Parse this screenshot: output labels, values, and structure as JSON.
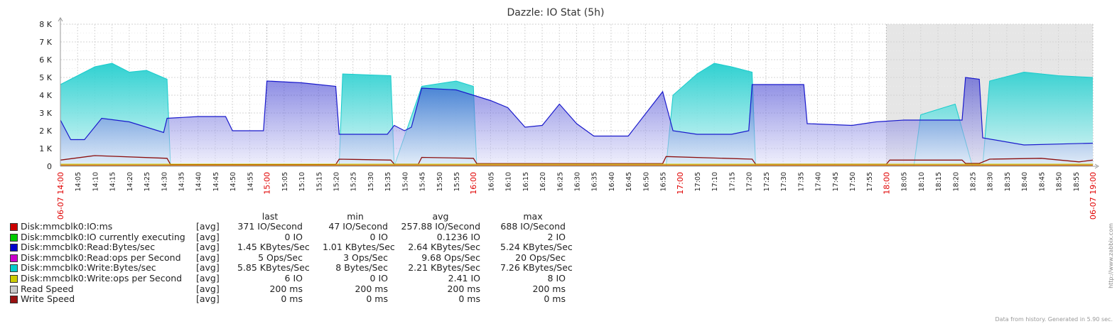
{
  "chart_data": {
    "type": "area",
    "title": "Dazzle: IO Stat (5h)",
    "y_ticks": [
      "0",
      "1 K",
      "2 K",
      "3 K",
      "4 K",
      "5 K",
      "6 K",
      "7 K",
      "8 K"
    ],
    "ylim": [
      0,
      8000
    ],
    "x_range": [
      "14:00",
      "19:00"
    ],
    "x_major_labels": [
      {
        "time": "14:00",
        "label": "06-07 14:00"
      },
      {
        "time": "15:00",
        "label": "15:00"
      },
      {
        "time": "16:00",
        "label": "16:00"
      },
      {
        "time": "17:00",
        "label": "17:00"
      },
      {
        "time": "18:00",
        "label": "18:00"
      },
      {
        "time": "19:00",
        "label": "06-07 19:00"
      }
    ],
    "x_minor_labels": [
      "14:05",
      "14:10",
      "14:15",
      "14:20",
      "14:25",
      "14:30",
      "14:35",
      "14:40",
      "14:45",
      "14:50",
      "14:55",
      "15:05",
      "15:10",
      "15:15",
      "15:20",
      "15:25",
      "15:30",
      "15:35",
      "15:40",
      "15:45",
      "15:50",
      "15:55",
      "16:05",
      "16:10",
      "16:15",
      "16:20",
      "16:25",
      "16:30",
      "16:35",
      "16:40",
      "16:45",
      "16:50",
      "16:55",
      "17:05",
      "17:10",
      "17:15",
      "17:20",
      "17:25",
      "17:30",
      "17:35",
      "17:40",
      "17:45",
      "17:50",
      "17:55",
      "18:05",
      "18:10",
      "18:15",
      "18:20",
      "18:25",
      "18:30",
      "18:35",
      "18:40",
      "18:45",
      "18:50",
      "18:55"
    ],
    "shaded_region": [
      "18:00",
      "19:00"
    ],
    "grid": true,
    "series_curves": {
      "write_bytes": {
        "color": "#19cccc",
        "times": [
          "14:00",
          "14:05",
          "14:10",
          "14:15",
          "14:20",
          "14:25",
          "14:31",
          "14:32",
          "15:21",
          "15:22",
          "15:36",
          "15:37",
          "15:45",
          "15:55",
          "16:00",
          "16:01",
          "16:56",
          "16:58",
          "17:05",
          "17:10",
          "17:15",
          "17:21",
          "17:22",
          "18:08",
          "18:10",
          "18:15",
          "18:20",
          "18:25",
          "18:28",
          "18:30",
          "18:40",
          "18:50",
          "19:00"
        ],
        "values": [
          4600,
          5100,
          5600,
          5800,
          5300,
          5400,
          4900,
          0,
          0,
          5200,
          5100,
          0,
          4500,
          4800,
          4500,
          0,
          0,
          4000,
          5200,
          5800,
          5600,
          5300,
          0,
          0,
          2900,
          3200,
          3500,
          0,
          0,
          4800,
          5300,
          5100,
          5000
        ]
      },
      "read_bytes": {
        "color": "#1a1acc",
        "times": [
          "14:00",
          "14:03",
          "14:07",
          "14:12",
          "14:20",
          "14:30",
          "14:31",
          "14:40",
          "14:48",
          "14:50",
          "14:59",
          "15:00",
          "15:10",
          "15:20",
          "15:21",
          "15:25",
          "15:35",
          "15:37",
          "15:40",
          "15:42",
          "15:45",
          "15:55",
          "16:00",
          "16:05",
          "16:10",
          "16:15",
          "16:20",
          "16:25",
          "16:30",
          "16:35",
          "16:40",
          "16:45",
          "16:55",
          "16:58",
          "17:05",
          "17:15",
          "17:20",
          "17:21",
          "17:30",
          "17:36",
          "17:37",
          "17:50",
          "17:57",
          "18:05",
          "18:15",
          "18:22",
          "18:23",
          "18:27",
          "18:28",
          "18:40",
          "19:00"
        ],
        "values": [
          2600,
          1500,
          1500,
          2700,
          2500,
          1900,
          2700,
          2800,
          2800,
          2000,
          2000,
          4800,
          4700,
          4500,
          1800,
          1800,
          1800,
          2300,
          2000,
          2200,
          4400,
          4300,
          4000,
          3700,
          3300,
          2200,
          2300,
          3500,
          2400,
          1700,
          1700,
          1700,
          4200,
          2000,
          1800,
          1800,
          2000,
          4600,
          4600,
          4600,
          2400,
          2300,
          2500,
          2600,
          2600,
          2600,
          5000,
          4900,
          1600,
          1200,
          1300
        ]
      },
      "io_ms": {
        "color": "#8b1010",
        "times": [
          "14:00",
          "14:10",
          "14:31",
          "14:32",
          "15:20",
          "15:21",
          "15:36",
          "15:37",
          "15:44",
          "15:45",
          "16:00",
          "16:01",
          "16:55",
          "16:56",
          "17:21",
          "17:22",
          "18:00",
          "18:01",
          "18:22",
          "18:23",
          "18:27",
          "18:30",
          "18:45",
          "18:56",
          "19:00"
        ],
        "values": [
          350,
          600,
          450,
          100,
          100,
          400,
          350,
          120,
          120,
          500,
          450,
          150,
          150,
          550,
          400,
          120,
          120,
          350,
          350,
          160,
          160,
          400,
          450,
          250,
          350
        ]
      }
    },
    "series": [
      {
        "name": "Disk:mmcblk0:IO:ms",
        "color": "#cc0000",
        "func": "[avg]",
        "last": "371 IO/Second",
        "min": "47 IO/Second",
        "avg": "257.88 IO/Second",
        "max": "688 IO/Second"
      },
      {
        "name": "Disk:mmcblk0:IO currently executing",
        "color": "#00cc00",
        "func": "[avg]",
        "last": "0 IO",
        "min": "0 IO",
        "avg": "0.1236 IO",
        "max": "2 IO"
      },
      {
        "name": "Disk:mmcblk0:Read:Bytes/sec",
        "color": "#0000cc",
        "func": "[avg]",
        "last": "1.45 KBytes/Sec",
        "min": "1.01 KBytes/Sec",
        "avg": "2.64 KBytes/Sec",
        "max": "5.24 KBytes/Sec"
      },
      {
        "name": "Disk:mmcblk0:Read:ops per Second",
        "color": "#cc00cc",
        "func": "[avg]",
        "last": "5 Ops/Sec",
        "min": "3 Ops/Sec",
        "avg": "9.68 Ops/Sec",
        "max": "20 Ops/Sec"
      },
      {
        "name": "Disk:mmcblk0:Write:Bytes/sec",
        "color": "#00cccc",
        "func": "[avg]",
        "last": "5.85 KBytes/Sec",
        "min": "8 Bytes/Sec",
        "avg": "2.21 KBytes/Sec",
        "max": "7.26 KBytes/Sec"
      },
      {
        "name": "Disk:mmcblk0:Write:ops per Second",
        "color": "#cccc00",
        "func": "[avg]",
        "last": "6 IO",
        "min": "0 IO",
        "avg": "2.41 IO",
        "max": "8 IO"
      },
      {
        "name": "Read Speed",
        "color": "#c8c8c8",
        "func": "[avg]",
        "last": "200 ms",
        "min": "200 ms",
        "avg": "200 ms",
        "max": "200 ms"
      },
      {
        "name": "Write Speed",
        "color": "#991111",
        "func": "[avg]",
        "last": "0 ms",
        "min": "0 ms",
        "avg": "0 ms",
        "max": "0 ms"
      }
    ]
  },
  "legend_headers": {
    "last": "last",
    "min": "min",
    "avg": "avg",
    "max": "max"
  },
  "side_text": "http://www.zabbix.com",
  "footer": "Data from history. Generated in 5.90 sec."
}
